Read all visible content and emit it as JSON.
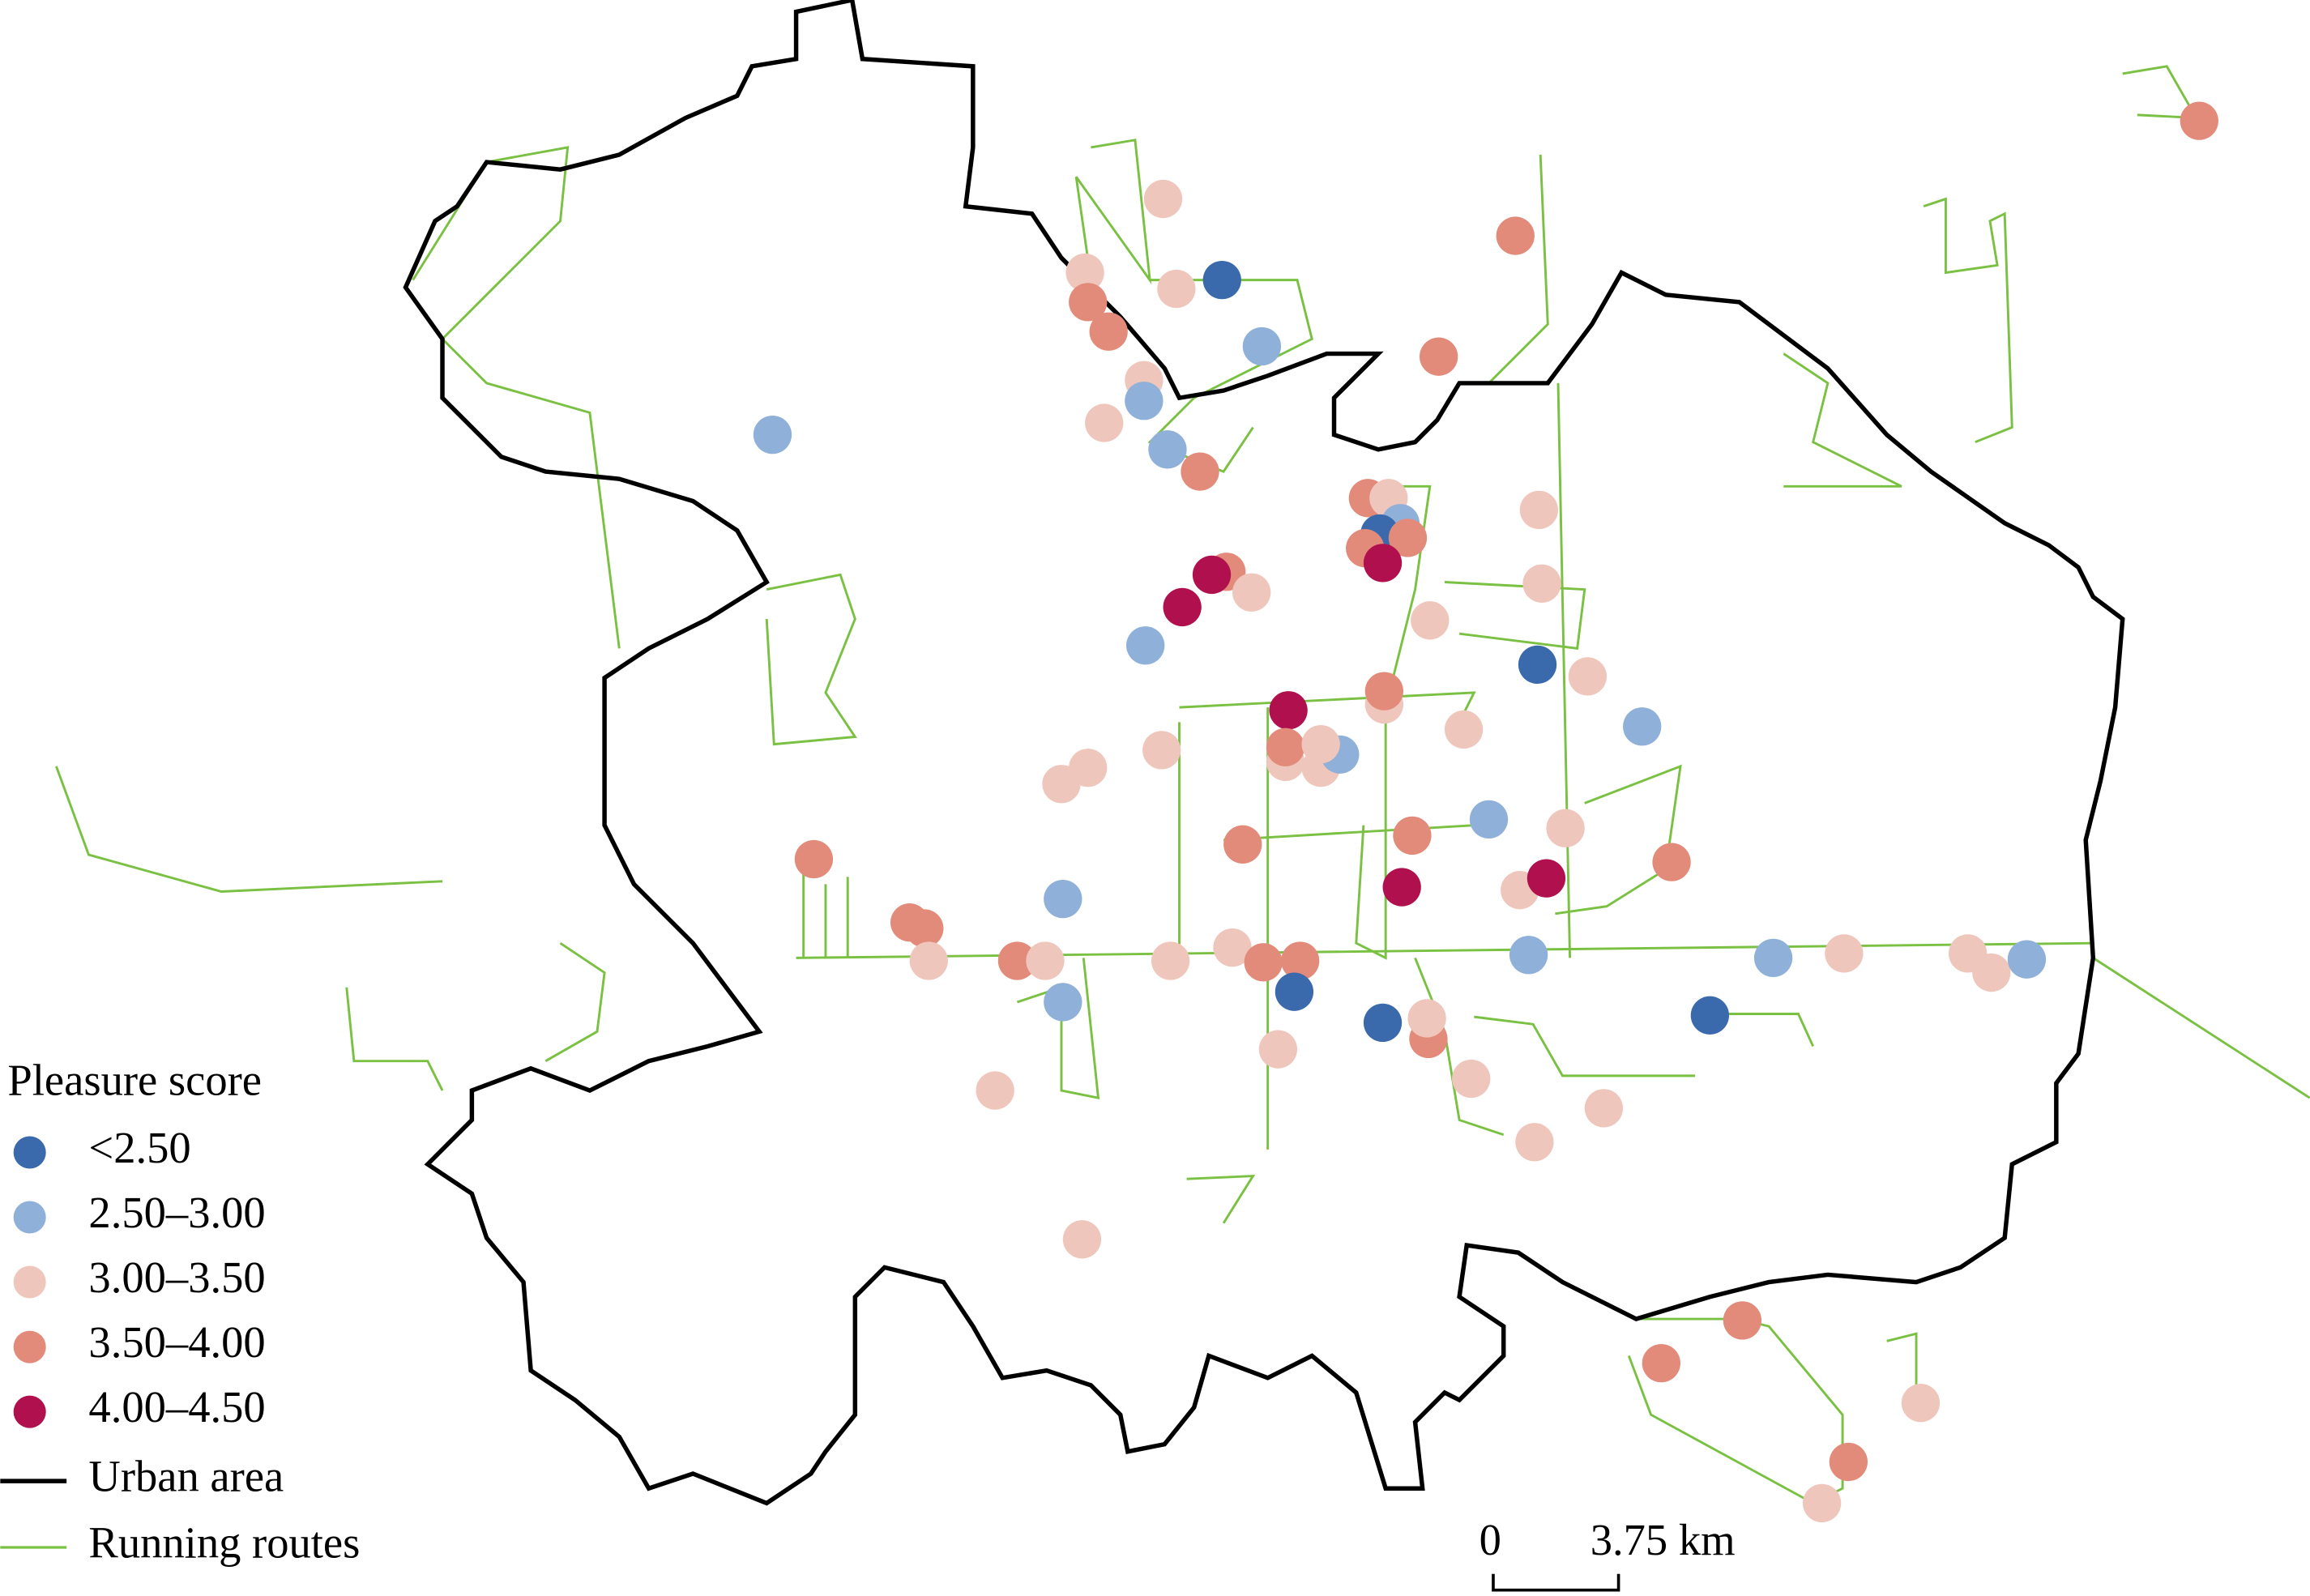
{
  "legend": {
    "title": "Pleasure score",
    "items": [
      {
        "label": "<2.50",
        "color": "#3a6aab"
      },
      {
        "label": "2.50–3.00",
        "color": "#8fb0d8"
      },
      {
        "label": "3.00–3.50",
        "color": "#efc6bb"
      },
      {
        "label": "3.50–4.00",
        "color": "#e38b7a"
      },
      {
        "label": "4.00–4.50",
        "color": "#b0104d"
      }
    ],
    "lines": [
      {
        "label": "Urban area",
        "color": "#000000"
      },
      {
        "label": "Running routes",
        "color": "#7ac143"
      }
    ]
  },
  "scale_bar": {
    "start": "0",
    "end": "3.75 km"
  }
}
